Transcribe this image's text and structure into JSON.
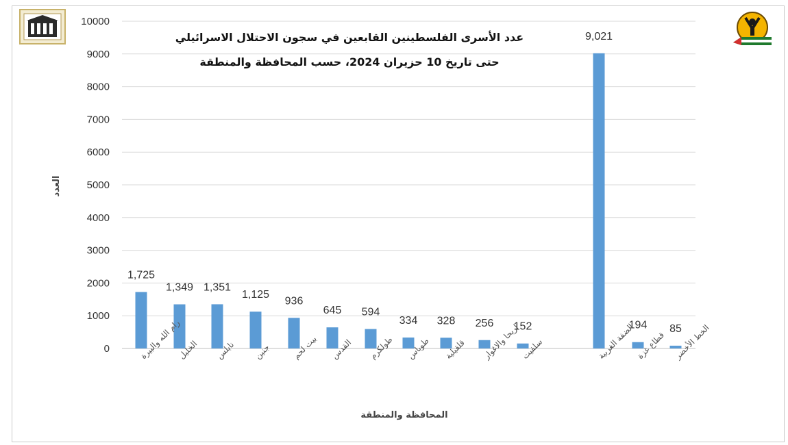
{
  "chart_data": {
    "type": "bar",
    "title": "عدد الأسرى الفلسطينين القابعين في سجون الاحتلال الاسرائيلي",
    "subtitle": "حتى تاريخ 10 حزيران 2024، حسب المحافظة والمنطقة",
    "xlabel": "المحافظة والمنطقة",
    "ylabel": "العدد",
    "ylim": [
      0,
      10000
    ],
    "yticks": [
      0,
      1000,
      2000,
      3000,
      4000,
      5000,
      6000,
      7000,
      8000,
      9000,
      10000
    ],
    "ytick_labels": [
      "0",
      "1000",
      "2000",
      "3000",
      "4000",
      "5000",
      "6000",
      "7000",
      "8000",
      "9000",
      "10000"
    ],
    "grid": true,
    "color": "#5b9bd5",
    "categories": [
      "رام الله والبيرة",
      "الخليل",
      "نابلس",
      "جنين",
      "بيت لحم",
      "القدس",
      "طولكرم",
      "طوباس",
      "قلقيلية",
      "اريحا والاغوار",
      "سلفيت",
      "الضفة الغربية",
      "قطاع غزة",
      "الخط الأخضر"
    ],
    "values": [
      1725,
      1349,
      1351,
      1125,
      936,
      645,
      594,
      334,
      328,
      256,
      152,
      9021,
      194,
      85
    ],
    "value_labels": [
      "1,725",
      "1,349",
      "1,351",
      "1,125",
      "936",
      "645",
      "594",
      "334",
      "328",
      "256",
      "152",
      "9,021",
      "194",
      "85"
    ]
  },
  "logos": {
    "left": "building-logo-icon",
    "right": "prisoner-emblem-icon"
  }
}
